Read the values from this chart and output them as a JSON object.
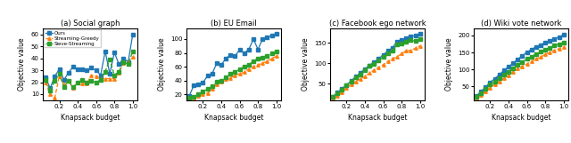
{
  "x": [
    0.05,
    0.1,
    0.15,
    0.2,
    0.25,
    0.3,
    0.35,
    0.4,
    0.45,
    0.5,
    0.55,
    0.6,
    0.65,
    0.7,
    0.75,
    0.8,
    0.85,
    0.9,
    0.95,
    1.0
  ],
  "subplots": [
    {
      "title": "(a) Social graph",
      "ylabel": "Objective value",
      "xlabel": "Knapsack budget",
      "ylim": [
        5,
        65
      ],
      "yticks": [
        10,
        20,
        30,
        40,
        50,
        60
      ],
      "ours": [
        24,
        15,
        25,
        31,
        22,
        28,
        33,
        31,
        31,
        30,
        32,
        30,
        26,
        46,
        27,
        45,
        35,
        40,
        37,
        60
      ],
      "streaming_greedy": [
        20,
        10,
        7,
        25,
        18,
        21,
        15,
        20,
        19,
        19,
        26,
        25,
        23,
        23,
        23,
        23,
        28,
        36,
        37,
        41
      ],
      "sieve_streaming": [
        22,
        13,
        21,
        27,
        16,
        21,
        16,
        20,
        22,
        20,
        21,
        20,
        22,
        29,
        39,
        26,
        29,
        37,
        35,
        46
      ]
    },
    {
      "title": "(b) EU Email",
      "ylabel": "Objective value",
      "xlabel": "Knapsack budget",
      "ylim": [
        12,
        115
      ],
      "yticks": [
        20,
        40,
        60,
        80,
        100
      ],
      "ours": [
        18,
        33,
        35,
        37,
        47,
        50,
        65,
        63,
        72,
        77,
        75,
        85,
        80,
        85,
        100,
        85,
        100,
        103,
        105,
        108
      ],
      "streaming_greedy": [
        15,
        16,
        18,
        20,
        22,
        28,
        35,
        39,
        42,
        44,
        48,
        50,
        52,
        57,
        60,
        63,
        65,
        68,
        72,
        75
      ],
      "sieve_streaming": [
        15,
        17,
        20,
        24,
        28,
        32,
        38,
        40,
        45,
        50,
        52,
        57,
        60,
        63,
        68,
        72,
        73,
        76,
        79,
        82
      ]
    },
    {
      "title": "(c) Facebook ego network",
      "ylabel": "Objective value",
      "xlabel": "Knapsack budget",
      "ylim": [
        10,
        185
      ],
      "yticks": [
        50,
        100,
        150
      ],
      "ours": [
        18,
        28,
        38,
        47,
        57,
        67,
        76,
        86,
        95,
        103,
        111,
        121,
        130,
        138,
        153,
        157,
        162,
        166,
        168,
        173
      ],
      "streaming_greedy": [
        15,
        20,
        30,
        40,
        48,
        55,
        62,
        68,
        76,
        84,
        90,
        97,
        104,
        112,
        116,
        124,
        130,
        132,
        137,
        143
      ],
      "sieve_streaming": [
        17,
        26,
        36,
        46,
        56,
        65,
        72,
        84,
        94,
        98,
        108,
        116,
        124,
        132,
        146,
        149,
        153,
        157,
        154,
        159
      ]
    },
    {
      "title": "(d) Wiki vote network",
      "ylabel": "Objective value",
      "xlabel": "Knapsack budget",
      "ylim": [
        10,
        220
      ],
      "yticks": [
        50,
        100,
        150,
        200
      ],
      "ours": [
        22,
        35,
        48,
        62,
        73,
        85,
        97,
        108,
        118,
        130,
        140,
        151,
        158,
        167,
        172,
        180,
        185,
        190,
        195,
        202
      ],
      "streaming_greedy": [
        18,
        26,
        36,
        47,
        57,
        65,
        74,
        83,
        93,
        102,
        109,
        116,
        123,
        131,
        136,
        144,
        150,
        156,
        161,
        166
      ],
      "sieve_streaming": [
        20,
        30,
        42,
        55,
        65,
        74,
        84,
        94,
        104,
        114,
        122,
        131,
        138,
        146,
        152,
        158,
        164,
        170,
        174,
        180
      ]
    }
  ],
  "color_ours": "#1f77b4",
  "color_sg": "#ff7f0e",
  "color_ss": "#2ca02c",
  "legend_labels": [
    "Ours",
    "Streaming-Greedy",
    "Sieve-Streaming"
  ]
}
